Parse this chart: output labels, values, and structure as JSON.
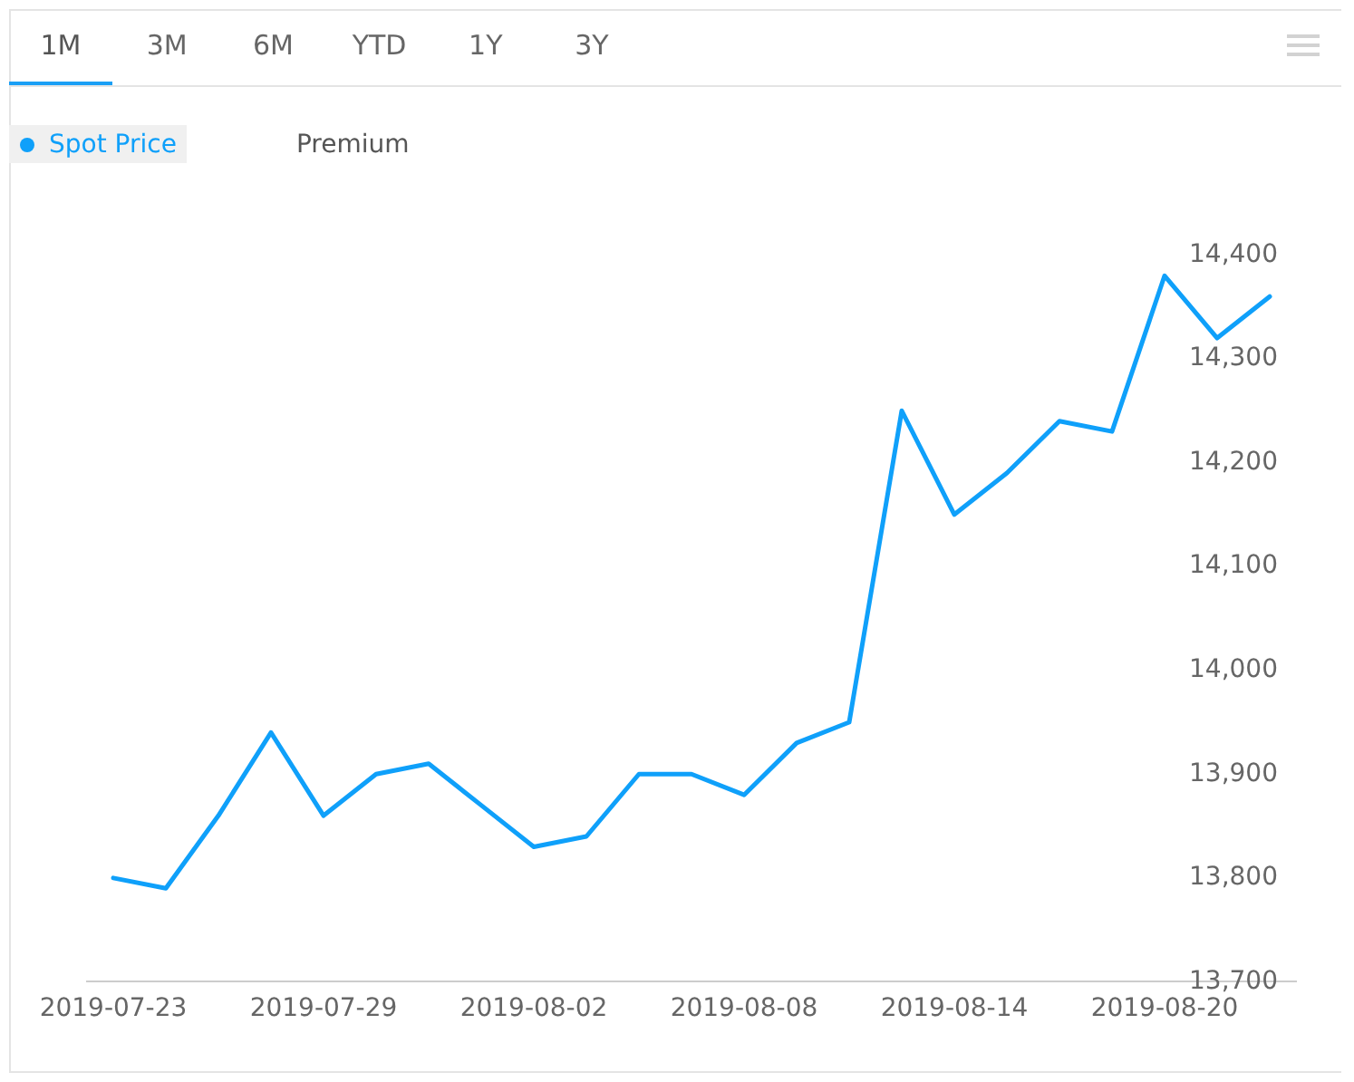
{
  "chart_data": {
    "type": "line",
    "categories": [
      "2019-07-23",
      null,
      null,
      null,
      "2019-07-29",
      null,
      null,
      null,
      "2019-08-02",
      null,
      null,
      null,
      "2019-08-08",
      null,
      null,
      null,
      "2019-08-14",
      null,
      null,
      null,
      "2019-08-20",
      null,
      null
    ],
    "series": [
      {
        "name": "Spot Price",
        "color": "#0fa0fa",
        "values": [
          13800,
          13790,
          13860,
          13940,
          13860,
          13900,
          13910,
          13870,
          13830,
          13840,
          13900,
          13900,
          13880,
          13930,
          13950,
          14250,
          14150,
          14190,
          14240,
          14230,
          14380,
          14320,
          14360
        ]
      }
    ],
    "ylim": [
      13700,
      14400
    ],
    "yticks": [
      {
        "value": 13700,
        "label": "13,700"
      },
      {
        "value": 13800,
        "label": "13,800"
      },
      {
        "value": 13900,
        "label": "13,900"
      },
      {
        "value": 14000,
        "label": "14,000"
      },
      {
        "value": 14100,
        "label": "14,100"
      },
      {
        "value": 14200,
        "label": "14,200"
      },
      {
        "value": 14300,
        "label": "14,300"
      },
      {
        "value": 14400,
        "label": "14,400"
      }
    ],
    "legend": "top left",
    "marker": "none",
    "line_style": "solid",
    "annotations": [
      "1M",
      "3M",
      "6M",
      "YTD",
      "1Y",
      "3Y",
      "Premium"
    ]
  }
}
